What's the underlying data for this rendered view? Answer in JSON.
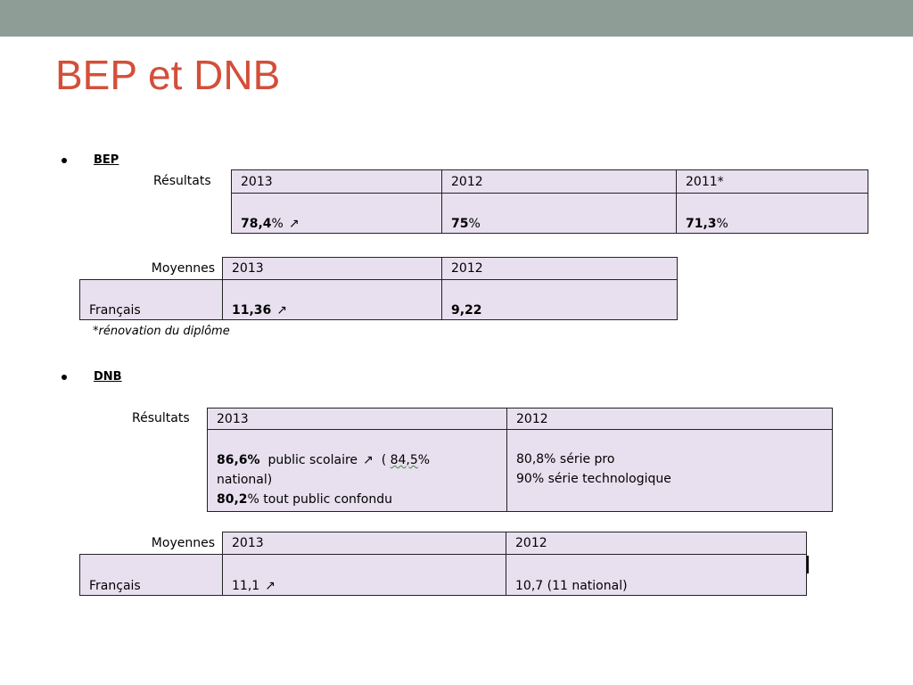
{
  "slide_title": "BEP et DNB",
  "bep": {
    "heading": "BEP",
    "results_label": "Résultats",
    "results_headers": [
      "2013",
      "2012",
      "2011*"
    ],
    "results_values": [
      {
        "bold": "78,4",
        "rest": "%",
        "arrow": "↗"
      },
      {
        "bold": "75",
        "rest": "%",
        "arrow": ""
      },
      {
        "bold": "71,3",
        "rest": "%",
        "arrow": ""
      }
    ],
    "averages_label": "Moyennes",
    "averages_headers": [
      "2013",
      "2012"
    ],
    "averages_row_label": "Français",
    "averages_values": [
      {
        "bold": "11,36",
        "arrow": "↗"
      },
      {
        "bold": "9,22",
        "arrow": ""
      }
    ],
    "footnote": "*rénovation du diplôme"
  },
  "dnb": {
    "heading": "DNB",
    "results_label": "Résultats",
    "results_headers": [
      "2013",
      "2012"
    ],
    "results_2013": {
      "line1_bold": "86,6%",
      "line1_text": "public scolaire",
      "line1_arrow": "↗",
      "line1_paren_open": "(",
      "line1_national_value": "84,5",
      "line1_national_rest": "%",
      "line2_text": "national)",
      "line3_bold": "80,2",
      "line3_rest": "%  tout public confondu"
    },
    "results_2012": {
      "line1": "80,8%  série pro",
      "line2": "90%  série technologique"
    },
    "averages_label": "Moyennes",
    "averages_headers": [
      "2013",
      "2012"
    ],
    "averages_row_label": "Français",
    "averages_values": [
      {
        "text": "11,1",
        "arrow": "↗"
      },
      {
        "text": "10,7 (11 national)",
        "arrow": ""
      }
    ]
  }
}
